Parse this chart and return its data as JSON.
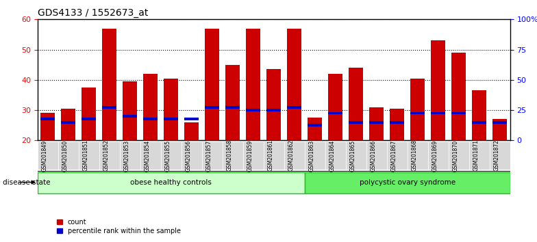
{
  "title": "GDS4133 / 1552673_at",
  "samples": [
    "GSM201849",
    "GSM201850",
    "GSM201851",
    "GSM201852",
    "GSM201853",
    "GSM201854",
    "GSM201855",
    "GSM201856",
    "GSM201857",
    "GSM201858",
    "GSM201859",
    "GSM201861",
    "GSM201862",
    "GSM201863",
    "GSM201864",
    "GSM201865",
    "GSM201866",
    "GSM201867",
    "GSM201868",
    "GSM201869",
    "GSM201870",
    "GSM201871",
    "GSM201872"
  ],
  "count_values": [
    29,
    30.5,
    37.5,
    57,
    39.5,
    42,
    40.5,
    26,
    57,
    45,
    57,
    43.5,
    57,
    27.5,
    42,
    44,
    31,
    30.5,
    40.5,
    53,
    49,
    36.5,
    27
  ],
  "percentile_values": [
    27,
    26,
    27,
    31,
    28,
    27,
    27,
    27,
    31,
    31,
    30,
    30,
    31,
    25,
    29,
    26,
    26,
    26,
    29,
    29,
    29,
    26,
    26
  ],
  "group_names": [
    "obese healthy controls",
    "polycystic ovary syndrome"
  ],
  "group_ranges": [
    [
      0,
      13
    ],
    [
      13,
      23
    ]
  ],
  "group_colors": [
    "#ccffcc",
    "#66ee66"
  ],
  "group_edge_color": "#22bb22",
  "bar_color": "#cc0000",
  "percentile_color": "#0000cc",
  "ylim_left": [
    20,
    60
  ],
  "ylim_right": [
    0,
    100
  ],
  "yticks_left": [
    20,
    30,
    40,
    50,
    60
  ],
  "yticks_right": [
    0,
    25,
    50,
    75,
    100
  ],
  "yticklabels_right": [
    "0",
    "25",
    "50",
    "75",
    "100%"
  ],
  "title_fontsize": 10
}
